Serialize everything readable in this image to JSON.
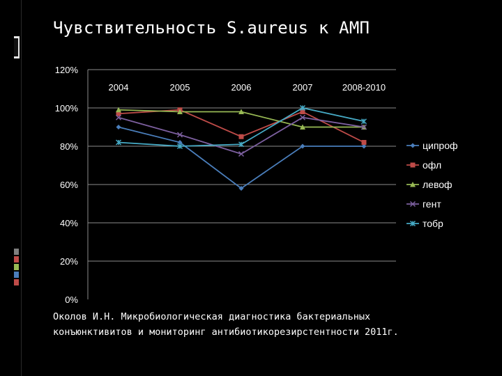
{
  "slide": {
    "title": "Чувствительность S.aureus к АМП",
    "caption_lines": [
      "Околов И.Н. Микробиологическая диагностика бактериальных",
      "конъюнктивитов и мониторинг антибиотикорезирстентности 2011г."
    ]
  },
  "chart_data": {
    "type": "line",
    "title": "",
    "xlabel": "",
    "ylabel": "",
    "categories": [
      "2004",
      "2005",
      "2006",
      "2007",
      "2008-2010"
    ],
    "ylim": [
      0,
      120
    ],
    "y_ticks": [
      "0%",
      "20%",
      "40%",
      "60%",
      "80%",
      "100%",
      "120%"
    ],
    "grid": true,
    "legend_position": "right",
    "series": [
      {
        "name": "ципроф",
        "values": [
          90,
          82,
          58,
          80,
          80
        ],
        "color": "#4a7ebb",
        "marker": "diamond"
      },
      {
        "name": "офл",
        "values": [
          97,
          99,
          85,
          98,
          82
        ],
        "color": "#be4b48",
        "marker": "square"
      },
      {
        "name": "левоф",
        "values": [
          99,
          98,
          98,
          90,
          90
        ],
        "color": "#98b954",
        "marker": "triangle"
      },
      {
        "name": "гент",
        "values": [
          95,
          86,
          76,
          95,
          90
        ],
        "color": "#7d60a0",
        "marker": "x"
      },
      {
        "name": "тобр",
        "values": [
          82,
          80,
          81,
          100,
          93
        ],
        "color": "#46aac5",
        "marker": "star"
      }
    ]
  },
  "colors": {
    "background": "#000000",
    "text": "#ffffff",
    "grid": "#8c8c8c",
    "side_accents": [
      "#7f7f7f",
      "#be4b48",
      "#98b954",
      "#4a7ebb",
      "#be4b48"
    ]
  }
}
